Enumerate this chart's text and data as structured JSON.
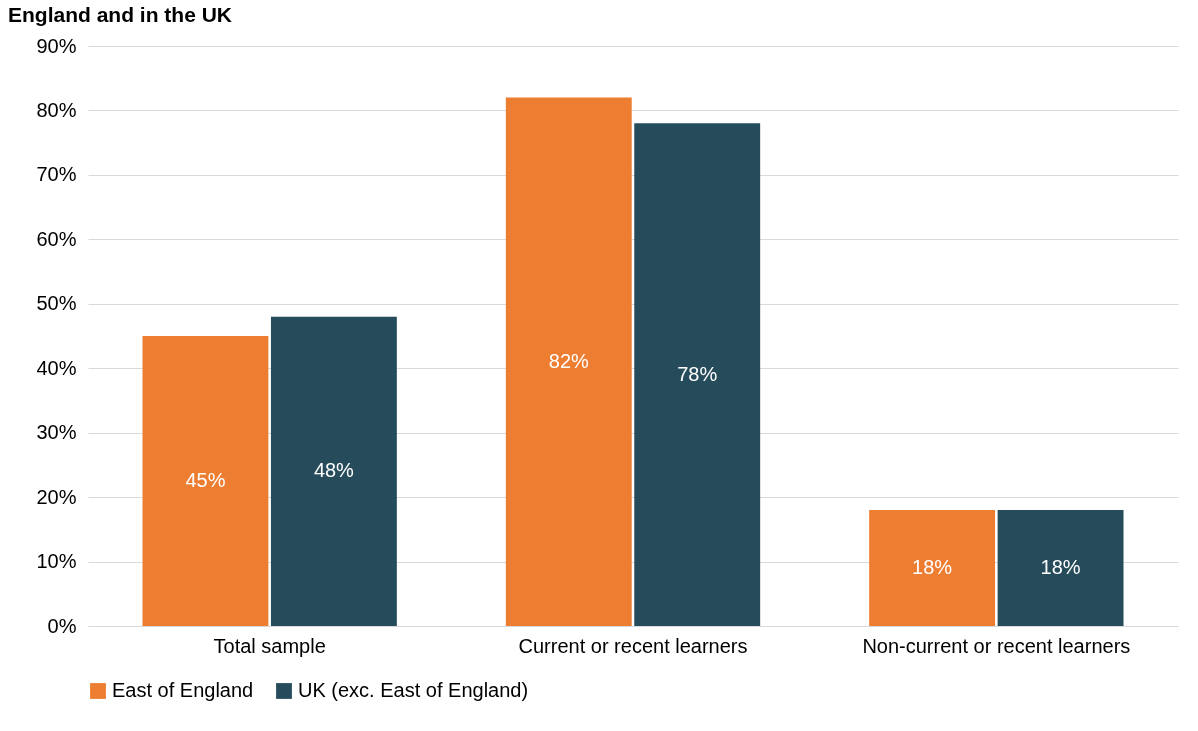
{
  "chart_data": {
    "type": "bar",
    "title": "England and in the UK",
    "categories": [
      "Total sample",
      "Current or recent learners",
      "Non-current or recent learners"
    ],
    "series": [
      {
        "name": "East of England",
        "color": "#ed7d31",
        "values": [
          45,
          82,
          18
        ],
        "value_labels": [
          "45%",
          "82%",
          "18%"
        ]
      },
      {
        "name": "UK (exc. East of England)",
        "color": "#264b5a",
        "values": [
          48,
          78,
          18
        ],
        "value_labels": [
          "48%",
          "78%",
          "18%"
        ]
      }
    ],
    "ylim": [
      0,
      90
    ],
    "yticks": [
      {
        "value": 0,
        "label": "0%"
      },
      {
        "value": 10,
        "label": "10%"
      },
      {
        "value": 20,
        "label": "20%"
      },
      {
        "value": 30,
        "label": "30%"
      },
      {
        "value": 40,
        "label": "40%"
      },
      {
        "value": 50,
        "label": "50%"
      },
      {
        "value": 60,
        "label": "60%"
      },
      {
        "value": 70,
        "label": "70%"
      },
      {
        "value": 80,
        "label": "80%"
      },
      {
        "value": 90,
        "label": "90%"
      }
    ],
    "grid": "y",
    "legend": "bottom"
  }
}
